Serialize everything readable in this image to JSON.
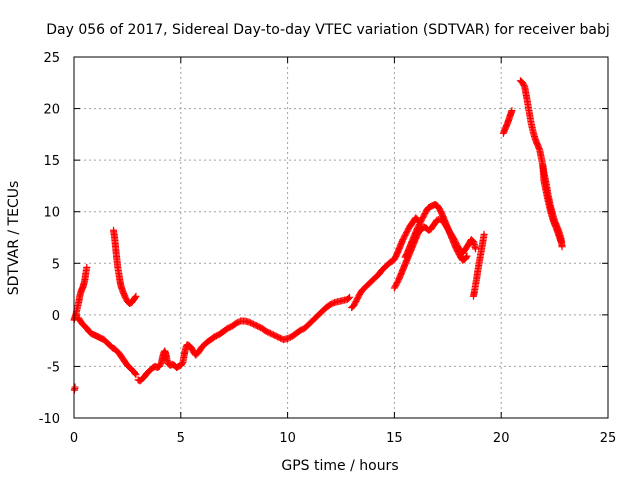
{
  "chart_data": {
    "type": "scatter",
    "title": "Day 056 of 2017, Sidereal Day-to-day VTEC variation (SDTVAR) for receiver babj",
    "xlabel": "GPS time / hours",
    "ylabel": "SDTVAR / TECUs",
    "xlim": [
      0,
      25
    ],
    "ylim": [
      -10,
      25
    ],
    "xticks": [
      0,
      5,
      10,
      15,
      20,
      25
    ],
    "yticks": [
      -10,
      -5,
      0,
      5,
      10,
      15,
      20,
      25
    ],
    "grid": true,
    "marker": "+",
    "color": "#ff0000",
    "segments": [
      {
        "name": "seg-a",
        "points": [
          [
            0.02,
            -7.3
          ],
          [
            0.05,
            -7.0
          ]
        ]
      },
      {
        "name": "seg-b",
        "points": [
          [
            0.0,
            -0.5
          ],
          [
            0.08,
            0.0
          ],
          [
            0.15,
            0.6
          ],
          [
            0.22,
            1.2
          ],
          [
            0.28,
            1.9
          ],
          [
            0.35,
            2.4
          ],
          [
            0.42,
            2.7
          ],
          [
            0.5,
            3.3
          ],
          [
            0.55,
            4.0
          ],
          [
            0.6,
            4.6
          ]
        ]
      },
      {
        "name": "seg-c",
        "points": [
          [
            0.2,
            -0.3
          ],
          [
            0.3,
            -0.6
          ],
          [
            0.4,
            -0.9
          ],
          [
            0.5,
            -1.1
          ],
          [
            0.6,
            -1.3
          ],
          [
            0.7,
            -1.6
          ],
          [
            0.8,
            -1.8
          ],
          [
            0.9,
            -1.9
          ],
          [
            1.0,
            -2.0
          ],
          [
            1.1,
            -2.1
          ],
          [
            1.2,
            -2.2
          ],
          [
            1.3,
            -2.3
          ],
          [
            1.4,
            -2.4
          ],
          [
            1.5,
            -2.6
          ],
          [
            1.6,
            -2.8
          ],
          [
            1.7,
            -3.0
          ],
          [
            1.8,
            -3.2
          ],
          [
            1.9,
            -3.3
          ],
          [
            2.0,
            -3.5
          ],
          [
            2.1,
            -3.7
          ],
          [
            2.2,
            -4.0
          ],
          [
            2.3,
            -4.3
          ],
          [
            2.4,
            -4.6
          ],
          [
            2.5,
            -4.9
          ],
          [
            2.6,
            -5.1
          ],
          [
            2.7,
            -5.3
          ],
          [
            2.8,
            -5.5
          ],
          [
            2.9,
            -5.8
          ]
        ]
      },
      {
        "name": "seg-d",
        "points": [
          [
            1.85,
            8.2
          ],
          [
            1.9,
            7.5
          ],
          [
            1.95,
            6.5
          ],
          [
            2.0,
            5.5
          ],
          [
            2.05,
            4.6
          ],
          [
            2.1,
            4.0
          ],
          [
            2.15,
            3.3
          ],
          [
            2.2,
            2.8
          ],
          [
            2.3,
            2.2
          ],
          [
            2.4,
            1.7
          ],
          [
            2.5,
            1.3
          ],
          [
            2.6,
            1.1
          ],
          [
            2.7,
            1.2
          ],
          [
            2.8,
            1.5
          ],
          [
            2.9,
            1.8
          ]
        ]
      },
      {
        "name": "seg-e",
        "points": [
          [
            3.0,
            -6.3
          ],
          [
            3.1,
            -6.4
          ],
          [
            3.2,
            -6.2
          ],
          [
            3.3,
            -6.0
          ],
          [
            3.4,
            -5.7
          ],
          [
            3.5,
            -5.5
          ],
          [
            3.6,
            -5.3
          ],
          [
            3.7,
            -5.1
          ],
          [
            3.8,
            -5.0
          ],
          [
            3.9,
            -5.1
          ],
          [
            4.0,
            -5.0
          ],
          [
            4.1,
            -4.6
          ],
          [
            4.15,
            -4.1
          ],
          [
            4.2,
            -3.7
          ],
          [
            4.25,
            -3.5
          ],
          [
            4.3,
            -3.8
          ],
          [
            4.35,
            -4.3
          ],
          [
            4.4,
            -4.7
          ],
          [
            4.5,
            -4.9
          ],
          [
            4.6,
            -4.8
          ],
          [
            4.7,
            -4.9
          ],
          [
            4.8,
            -5.1
          ],
          [
            4.9,
            -5.0
          ],
          [
            5.0,
            -4.9
          ],
          [
            5.1,
            -4.6
          ],
          [
            5.15,
            -4.0
          ],
          [
            5.2,
            -3.5
          ],
          [
            5.25,
            -3.1
          ],
          [
            5.3,
            -2.9
          ],
          [
            5.4,
            -3.0
          ],
          [
            5.5,
            -3.2
          ],
          [
            5.6,
            -3.6
          ],
          [
            5.7,
            -3.9
          ],
          [
            5.8,
            -3.7
          ],
          [
            5.9,
            -3.4
          ],
          [
            6.0,
            -3.1
          ],
          [
            6.2,
            -2.7
          ],
          [
            6.4,
            -2.4
          ],
          [
            6.6,
            -2.1
          ],
          [
            6.8,
            -1.9
          ],
          [
            7.0,
            -1.6
          ],
          [
            7.2,
            -1.3
          ],
          [
            7.4,
            -1.1
          ],
          [
            7.6,
            -0.8
          ],
          [
            7.8,
            -0.6
          ],
          [
            8.0,
            -0.6
          ],
          [
            8.2,
            -0.7
          ],
          [
            8.4,
            -0.9
          ],
          [
            8.6,
            -1.1
          ],
          [
            8.8,
            -1.3
          ],
          [
            9.0,
            -1.6
          ],
          [
            9.2,
            -1.8
          ],
          [
            9.4,
            -2.0
          ],
          [
            9.6,
            -2.2
          ],
          [
            9.8,
            -2.4
          ],
          [
            10.0,
            -2.3
          ],
          [
            10.2,
            -2.1
          ],
          [
            10.4,
            -1.8
          ],
          [
            10.6,
            -1.5
          ],
          [
            10.8,
            -1.3
          ],
          [
            11.0,
            -0.9
          ],
          [
            11.2,
            -0.5
          ],
          [
            11.4,
            -0.1
          ],
          [
            11.6,
            0.3
          ],
          [
            11.8,
            0.7
          ],
          [
            12.0,
            1.0
          ],
          [
            12.2,
            1.2
          ],
          [
            12.4,
            1.3
          ],
          [
            12.6,
            1.4
          ],
          [
            12.8,
            1.5
          ],
          [
            12.9,
            1.7
          ]
        ]
      },
      {
        "name": "seg-f",
        "points": [
          [
            13.0,
            0.7
          ],
          [
            13.1,
            0.9
          ],
          [
            13.2,
            1.3
          ],
          [
            13.3,
            1.7
          ],
          [
            13.4,
            2.1
          ],
          [
            13.5,
            2.4
          ],
          [
            13.6,
            2.6
          ],
          [
            13.7,
            2.8
          ],
          [
            13.8,
            3.0
          ],
          [
            13.9,
            3.2
          ],
          [
            14.0,
            3.4
          ],
          [
            14.1,
            3.6
          ],
          [
            14.2,
            3.8
          ],
          [
            14.3,
            4.0
          ],
          [
            14.4,
            4.3
          ],
          [
            14.5,
            4.5
          ],
          [
            14.6,
            4.7
          ],
          [
            14.7,
            4.9
          ],
          [
            14.8,
            5.1
          ],
          [
            14.9,
            5.2
          ],
          [
            15.0,
            5.4
          ],
          [
            15.1,
            5.8
          ],
          [
            15.2,
            6.3
          ],
          [
            15.3,
            6.8
          ],
          [
            15.4,
            7.3
          ],
          [
            15.5,
            7.7
          ],
          [
            15.6,
            8.1
          ],
          [
            15.7,
            8.5
          ],
          [
            15.8,
            8.8
          ],
          [
            15.9,
            9.1
          ],
          [
            16.0,
            9.4
          ],
          [
            16.1,
            9.2
          ],
          [
            16.2,
            8.9
          ]
        ]
      },
      {
        "name": "seg-g",
        "points": [
          [
            15.0,
            2.6
          ],
          [
            15.1,
            3.0
          ],
          [
            15.2,
            3.4
          ],
          [
            15.3,
            3.9
          ],
          [
            15.4,
            4.4
          ],
          [
            15.5,
            4.9
          ],
          [
            15.6,
            5.4
          ],
          [
            15.7,
            5.9
          ],
          [
            15.8,
            6.4
          ],
          [
            15.9,
            6.9
          ],
          [
            16.0,
            7.4
          ],
          [
            16.1,
            7.9
          ],
          [
            16.2,
            8.2
          ],
          [
            16.3,
            8.4
          ],
          [
            16.4,
            8.5
          ],
          [
            16.5,
            8.4
          ],
          [
            16.6,
            8.2
          ],
          [
            16.7,
            8.3
          ],
          [
            16.8,
            8.6
          ],
          [
            16.9,
            8.9
          ],
          [
            17.0,
            9.2
          ],
          [
            17.2,
            9.3
          ],
          [
            17.4,
            8.7
          ],
          [
            17.6,
            8.0
          ],
          [
            17.8,
            7.3
          ],
          [
            18.0,
            6.5
          ],
          [
            18.2,
            6.0
          ],
          [
            18.4,
            6.6
          ],
          [
            18.6,
            7.3
          ],
          [
            18.7,
            7.1
          ],
          [
            18.8,
            6.4
          ]
        ]
      },
      {
        "name": "seg-h",
        "points": [
          [
            15.5,
            5.6
          ],
          [
            15.6,
            6.0
          ],
          [
            15.7,
            6.5
          ],
          [
            15.8,
            7.0
          ],
          [
            15.9,
            7.5
          ],
          [
            16.0,
            8.0
          ],
          [
            16.1,
            8.5
          ],
          [
            16.2,
            8.9
          ],
          [
            16.3,
            9.3
          ],
          [
            16.4,
            9.7
          ],
          [
            16.5,
            10.1
          ],
          [
            16.6,
            10.4
          ],
          [
            16.7,
            10.5
          ],
          [
            16.8,
            10.6
          ],
          [
            16.9,
            10.7
          ],
          [
            17.0,
            10.6
          ],
          [
            17.1,
            10.3
          ],
          [
            17.2,
            9.9
          ],
          [
            17.3,
            9.4
          ],
          [
            17.4,
            8.9
          ],
          [
            17.5,
            8.4
          ],
          [
            17.6,
            7.9
          ],
          [
            17.7,
            7.4
          ],
          [
            17.8,
            6.9
          ],
          [
            17.9,
            6.4
          ],
          [
            18.0,
            6.0
          ],
          [
            18.1,
            5.6
          ],
          [
            18.2,
            5.3
          ],
          [
            18.3,
            5.4
          ],
          [
            18.4,
            5.7
          ]
        ]
      },
      {
        "name": "seg-i",
        "points": [
          [
            18.7,
            1.8
          ],
          [
            18.75,
            2.3
          ],
          [
            18.8,
            2.9
          ],
          [
            18.85,
            3.5
          ],
          [
            18.9,
            4.2
          ],
          [
            18.95,
            4.8
          ],
          [
            19.0,
            5.4
          ],
          [
            19.05,
            6.0
          ],
          [
            19.1,
            6.6
          ],
          [
            19.15,
            7.2
          ],
          [
            19.2,
            7.8
          ]
        ]
      },
      {
        "name": "seg-j",
        "points": [
          [
            20.1,
            17.6
          ],
          [
            20.2,
            18.1
          ],
          [
            20.3,
            18.6
          ],
          [
            20.4,
            19.2
          ],
          [
            20.5,
            19.8
          ]
        ]
      },
      {
        "name": "seg-k",
        "points": [
          [
            20.9,
            22.7
          ],
          [
            21.0,
            22.5
          ],
          [
            21.1,
            22.1
          ],
          [
            21.2,
            21.0
          ],
          [
            21.3,
            19.8
          ],
          [
            21.4,
            18.6
          ],
          [
            21.5,
            17.7
          ],
          [
            21.6,
            17.0
          ],
          [
            21.7,
            16.5
          ],
          [
            21.8,
            16.0
          ],
          [
            21.9,
            15.0
          ],
          [
            22.0,
            13.8
          ],
          [
            22.1,
            12.8
          ],
          [
            22.2,
            11.6
          ],
          [
            22.3,
            10.6
          ],
          [
            22.4,
            9.8
          ],
          [
            22.5,
            9.1
          ],
          [
            22.6,
            8.6
          ],
          [
            22.7,
            8.1
          ],
          [
            22.8,
            7.4
          ],
          [
            22.85,
            6.6
          ]
        ]
      },
      {
        "name": "seg-l",
        "points": [
          [
            21.95,
            14.5
          ],
          [
            22.0,
            13.0
          ],
          [
            22.1,
            12.0
          ],
          [
            22.2,
            11.0
          ],
          [
            22.3,
            10.1
          ],
          [
            22.4,
            9.4
          ],
          [
            22.5,
            8.8
          ],
          [
            22.6,
            8.3
          ],
          [
            22.7,
            7.7
          ],
          [
            22.8,
            7.1
          ]
        ]
      }
    ]
  }
}
